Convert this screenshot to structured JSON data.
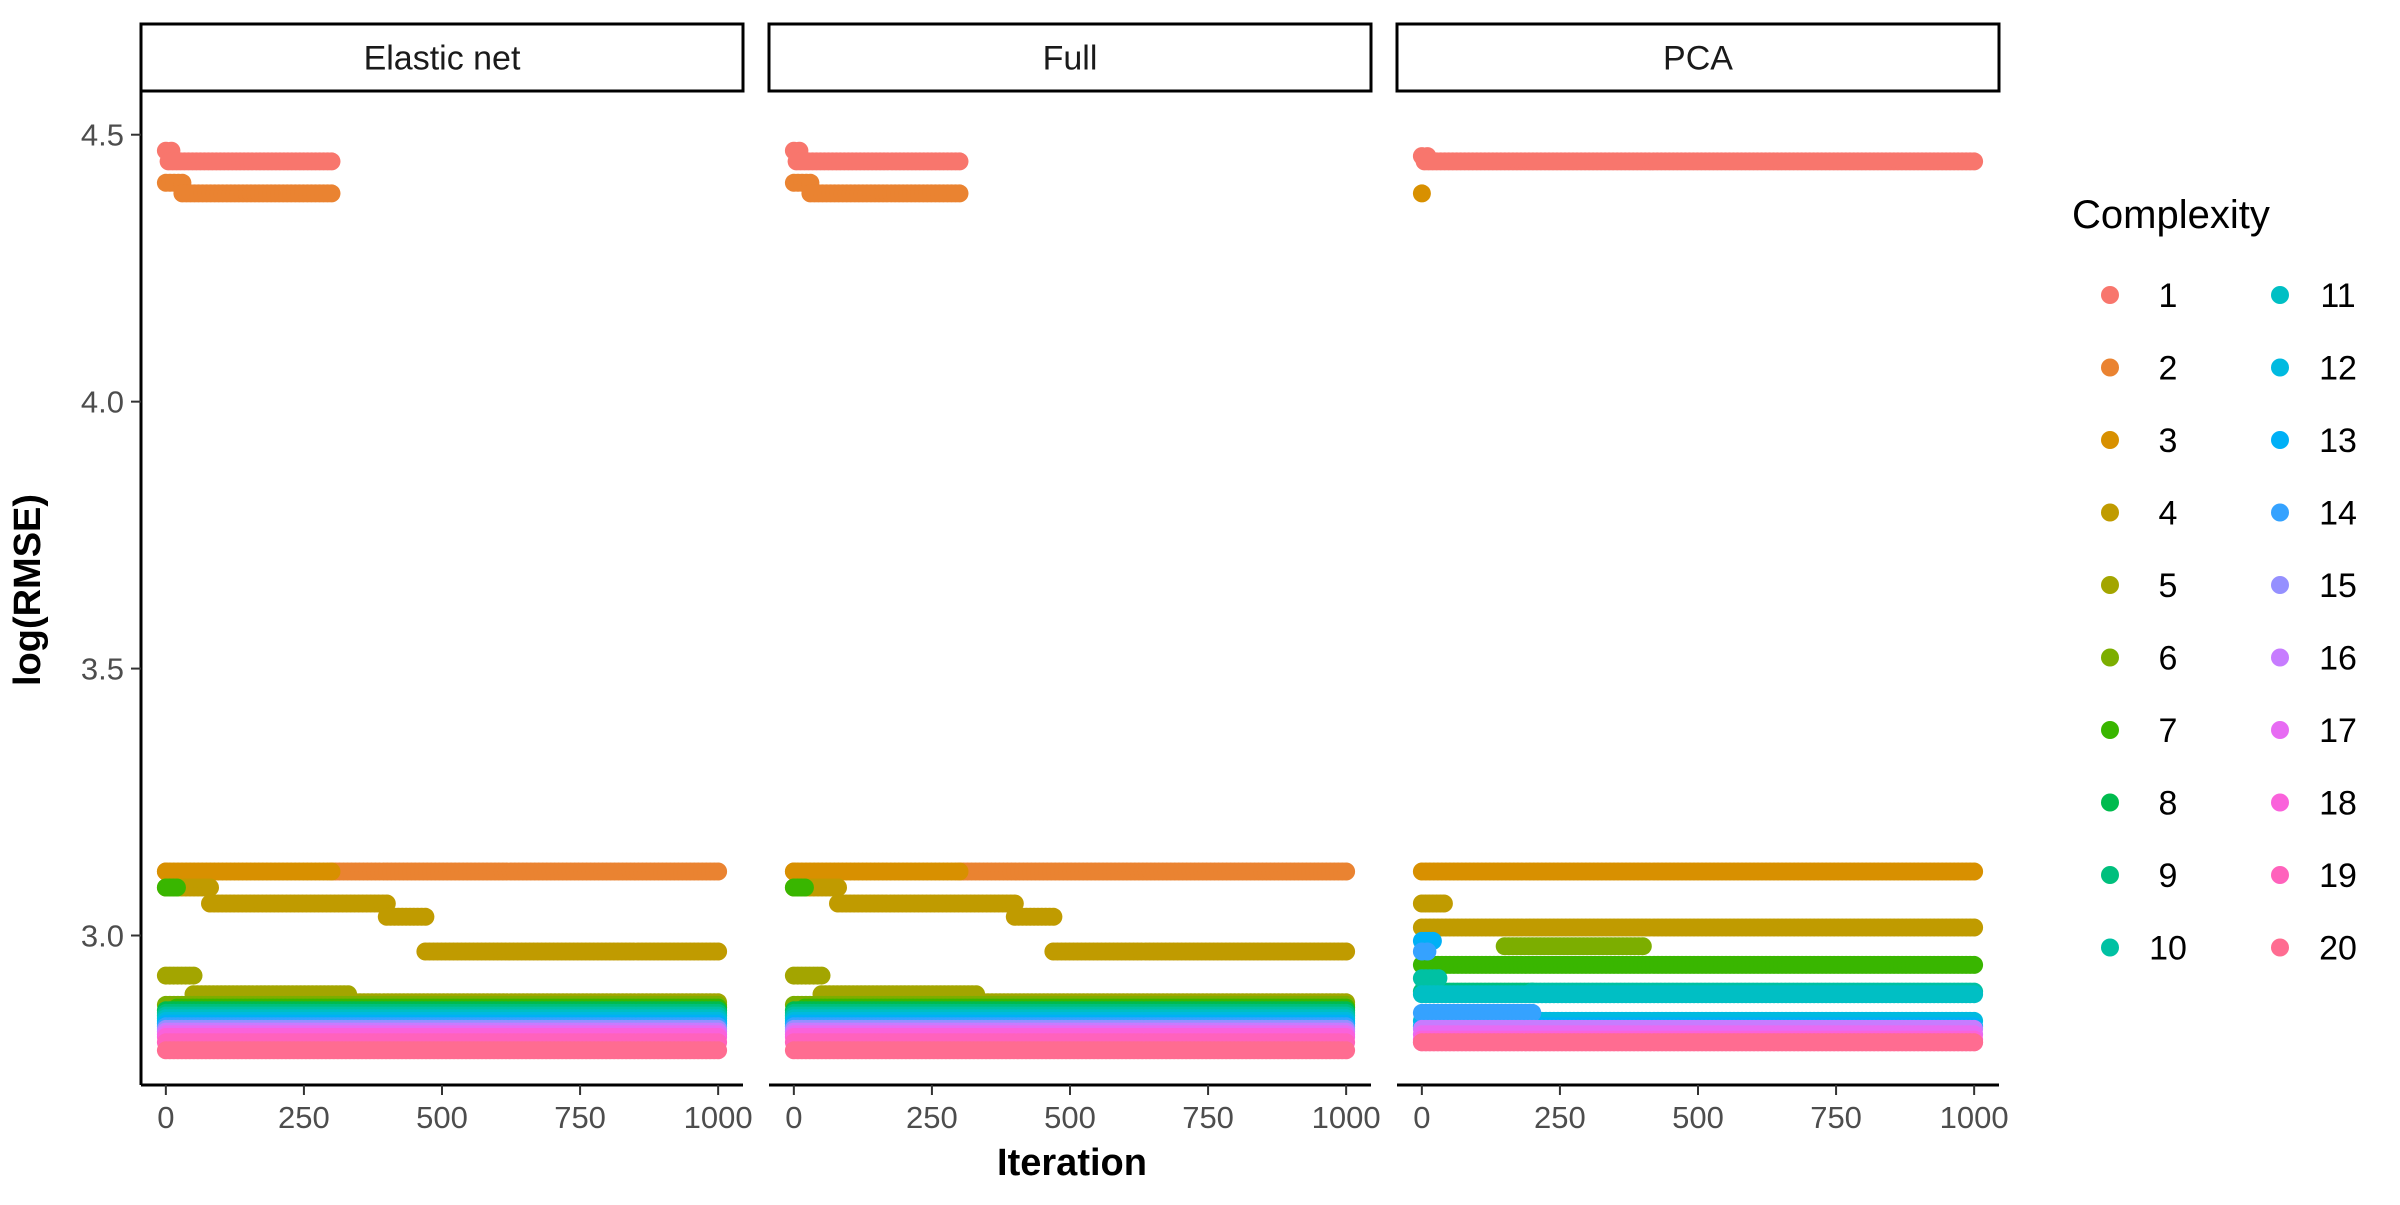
{
  "chart_data": {
    "type": "scatter",
    "facets": [
      "Elastic net",
      "Full",
      "PCA"
    ],
    "xlabel": "Iteration",
    "ylabel": "log(RMSE)",
    "xlim": [
      -45,
      1045
    ],
    "ylim": [
      2.72,
      4.58
    ],
    "x_ticks": [
      0,
      250,
      500,
      750,
      1000
    ],
    "y_ticks": [
      3.0,
      3.5,
      4.0,
      4.5
    ],
    "grid": false,
    "legend": {
      "title": "Complexity",
      "position": "right",
      "columns": 2,
      "entries": [
        "1",
        "2",
        "3",
        "4",
        "5",
        "6",
        "7",
        "8",
        "9",
        "10",
        "11",
        "12",
        "13",
        "14",
        "15",
        "16",
        "17",
        "18",
        "19",
        "20"
      ]
    },
    "colors": [
      "#F8766D",
      "#EA8331",
      "#D89000",
      "#C09B00",
      "#A3A500",
      "#7CAE00",
      "#39B600",
      "#00BB4E",
      "#00BF7D",
      "#00C1A3",
      "#00BFC4",
      "#00BAE0",
      "#00B0F6",
      "#35A2FF",
      "#9590FF",
      "#C77CFF",
      "#E76BF3",
      "#FA62DB",
      "#FF62BC",
      "#FF6C91"
    ],
    "panels": [
      {
        "facet": "Elastic net",
        "series": [
          {
            "name": "1",
            "segments": [
              {
                "x": [
                  0,
                  10
                ],
                "y": 4.47
              },
              {
                "x": [
                  5,
                  300
                ],
                "y": 4.45
              }
            ]
          },
          {
            "name": "2",
            "segments": [
              {
                "x": [
                  0,
                  30
                ],
                "y": 4.41
              },
              {
                "x": [
                  30,
                  300
                ],
                "y": 4.39
              },
              {
                "x": 0,
                "y": 3.12
              },
              {
                "x": [
                  300,
                  1000
                ],
                "y": 3.12
              }
            ]
          },
          {
            "name": "3",
            "segments": [
              {
                "x": [
                  0,
                  300
                ],
                "y": 3.12
              }
            ]
          },
          {
            "name": "4",
            "segments": [
              {
                "x": [
                  0,
                  80
                ],
                "y": 3.09
              },
              {
                "x": [
                  80,
                  400
                ],
                "y": 3.06
              },
              {
                "x": [
                  400,
                  470
                ],
                "y": 3.035
              },
              {
                "x": [
                  470,
                  1000
                ],
                "y": 2.97
              }
            ]
          },
          {
            "name": "5",
            "segments": [
              {
                "x": [
                  0,
                  50
                ],
                "y": 2.925
              },
              {
                "x": [
                  50,
                  330
                ],
                "y": 2.89
              },
              {
                "x": [
                  330,
                  1000
                ],
                "y": 2.875
              }
            ]
          },
          {
            "name": "6",
            "segments": [
              {
                "x": [
                  0,
                  1000
                ],
                "y": 2.87
              }
            ]
          },
          {
            "name": "7",
            "segments": [
              {
                "x": [
                  0,
                  20
                ],
                "y": 3.09
              },
              {
                "x": [
                  20,
                  1000
                ],
                "y": 2.865
              }
            ]
          },
          {
            "name": "8",
            "segments": [
              {
                "x": [
                  0,
                  1000
                ],
                "y": 2.86
              }
            ]
          },
          {
            "name": "9",
            "segments": [
              {
                "x": [
                  0,
                  1000
                ],
                "y": 2.855
              }
            ]
          },
          {
            "name": "10",
            "segments": [
              {
                "x": [
                  0,
                  1000
                ],
                "y": 2.85
              }
            ]
          },
          {
            "name": "11",
            "segments": [
              {
                "x": [
                  0,
                  1000
                ],
                "y": 2.845
              }
            ]
          },
          {
            "name": "12",
            "segments": [
              {
                "x": [
                  0,
                  1000
                ],
                "y": 2.84
              }
            ]
          },
          {
            "name": "13",
            "segments": [
              {
                "x": [
                  0,
                  1000
                ],
                "y": 2.835
              }
            ]
          },
          {
            "name": "14",
            "segments": [
              {
                "x": [
                  0,
                  1000
                ],
                "y": 2.83
              }
            ]
          },
          {
            "name": "15",
            "segments": [
              {
                "x": [
                  0,
                  1000
                ],
                "y": 2.825
              }
            ]
          },
          {
            "name": "16",
            "segments": [
              {
                "x": [
                  0,
                  1000
                ],
                "y": 2.82
              }
            ]
          },
          {
            "name": "17",
            "segments": [
              {
                "x": [
                  0,
                  1000
                ],
                "y": 2.815
              }
            ]
          },
          {
            "name": "18",
            "segments": [
              {
                "x": [
                  0,
                  1000
                ],
                "y": 2.81
              }
            ]
          },
          {
            "name": "19",
            "segments": [
              {
                "x": [
                  0,
                  1000
                ],
                "y": 2.8
              }
            ]
          },
          {
            "name": "20",
            "segments": [
              {
                "x": [
                  0,
                  1000
                ],
                "y": 2.785
              }
            ]
          }
        ]
      },
      {
        "facet": "Full",
        "series": [
          {
            "name": "1",
            "segments": [
              {
                "x": [
                  0,
                  10
                ],
                "y": 4.47
              },
              {
                "x": [
                  5,
                  300
                ],
                "y": 4.45
              }
            ]
          },
          {
            "name": "2",
            "segments": [
              {
                "x": [
                  0,
                  30
                ],
                "y": 4.41
              },
              {
                "x": [
                  30,
                  300
                ],
                "y": 4.39
              },
              {
                "x": 0,
                "y": 3.12
              },
              {
                "x": [
                  300,
                  1000
                ],
                "y": 3.12
              }
            ]
          },
          {
            "name": "3",
            "segments": [
              {
                "x": [
                  0,
                  300
                ],
                "y": 3.12
              }
            ]
          },
          {
            "name": "4",
            "segments": [
              {
                "x": [
                  0,
                  80
                ],
                "y": 3.09
              },
              {
                "x": [
                  80,
                  400
                ],
                "y": 3.06
              },
              {
                "x": [
                  400,
                  470
                ],
                "y": 3.035
              },
              {
                "x": [
                  470,
                  1000
                ],
                "y": 2.97
              }
            ]
          },
          {
            "name": "5",
            "segments": [
              {
                "x": [
                  0,
                  50
                ],
                "y": 2.925
              },
              {
                "x": [
                  50,
                  330
                ],
                "y": 2.89
              },
              {
                "x": [
                  330,
                  1000
                ],
                "y": 2.875
              }
            ]
          },
          {
            "name": "6",
            "segments": [
              {
                "x": [
                  0,
                  1000
                ],
                "y": 2.87
              }
            ]
          },
          {
            "name": "7",
            "segments": [
              {
                "x": [
                  0,
                  20
                ],
                "y": 3.09
              },
              {
                "x": [
                  20,
                  1000
                ],
                "y": 2.865
              }
            ]
          },
          {
            "name": "8",
            "segments": [
              {
                "x": [
                  0,
                  1000
                ],
                "y": 2.86
              }
            ]
          },
          {
            "name": "9",
            "segments": [
              {
                "x": [
                  0,
                  1000
                ],
                "y": 2.855
              }
            ]
          },
          {
            "name": "10",
            "segments": [
              {
                "x": [
                  0,
                  1000
                ],
                "y": 2.85
              }
            ]
          },
          {
            "name": "11",
            "segments": [
              {
                "x": [
                  0,
                  1000
                ],
                "y": 2.845
              }
            ]
          },
          {
            "name": "12",
            "segments": [
              {
                "x": [
                  0,
                  1000
                ],
                "y": 2.84
              }
            ]
          },
          {
            "name": "13",
            "segments": [
              {
                "x": [
                  0,
                  1000
                ],
                "y": 2.835
              }
            ]
          },
          {
            "name": "14",
            "segments": [
              {
                "x": [
                  0,
                  1000
                ],
                "y": 2.83
              }
            ]
          },
          {
            "name": "15",
            "segments": [
              {
                "x": [
                  0,
                  1000
                ],
                "y": 2.825
              }
            ]
          },
          {
            "name": "16",
            "segments": [
              {
                "x": [
                  0,
                  1000
                ],
                "y": 2.82
              }
            ]
          },
          {
            "name": "17",
            "segments": [
              {
                "x": [
                  0,
                  1000
                ],
                "y": 2.815
              }
            ]
          },
          {
            "name": "18",
            "segments": [
              {
                "x": [
                  0,
                  1000
                ],
                "y": 2.81
              }
            ]
          },
          {
            "name": "19",
            "segments": [
              {
                "x": [
                  0,
                  1000
                ],
                "y": 2.8
              }
            ]
          },
          {
            "name": "20",
            "segments": [
              {
                "x": [
                  0,
                  1000
                ],
                "y": 2.785
              }
            ]
          }
        ]
      },
      {
        "facet": "PCA",
        "series": [
          {
            "name": "1",
            "segments": [
              {
                "x": [
                  0,
                  10
                ],
                "y": 4.46
              },
              {
                "x": [
                  5,
                  1000
                ],
                "y": 4.45
              }
            ]
          },
          {
            "name": "3",
            "segments": [
              {
                "x": 0,
                "y": 4.39
              },
              {
                "x": [
                  0,
                  1000
                ],
                "y": 3.12
              }
            ]
          },
          {
            "name": "4",
            "segments": [
              {
                "x": [
                  0,
                  40
                ],
                "y": 3.06
              },
              {
                "x": [
                  0,
                  1000
                ],
                "y": 3.015
              }
            ]
          },
          {
            "name": "6",
            "segments": [
              {
                "x": [
                  150,
                  400
                ],
                "y": 2.98
              }
            ]
          },
          {
            "name": "7",
            "segments": [
              {
                "x": [
                  0,
                  1000
                ],
                "y": 2.945
              }
            ]
          },
          {
            "name": "9",
            "segments": [
              {
                "x": [
                  0,
                  200
                ],
                "y": 2.895
              }
            ]
          },
          {
            "name": "10",
            "segments": [
              {
                "x": [
                  0,
                  30
                ],
                "y": 2.92
              },
              {
                "x": [
                  200,
                  1000
                ],
                "y": 2.895
              }
            ]
          },
          {
            "name": "11",
            "segments": [
              {
                "x": [
                  0,
                  1000
                ],
                "y": 2.89
              }
            ]
          },
          {
            "name": "12",
            "segments": [
              {
                "x": [
                  0,
                  1000
                ],
                "y": 2.84
              }
            ]
          },
          {
            "name": "13",
            "segments": [
              {
                "x": [
                  0,
                  20
                ],
                "y": 2.99
              },
              {
                "x": [
                  0,
                  1000
                ],
                "y": 2.83
              }
            ]
          },
          {
            "name": "14",
            "segments": [
              {
                "x": [
                  0,
                  10
                ],
                "y": 2.97
              },
              {
                "x": [
                  0,
                  200
                ],
                "y": 2.855
              }
            ]
          },
          {
            "name": "16",
            "segments": [
              {
                "x": [
                  0,
                  1000
                ],
                "y": 2.825
              }
            ]
          },
          {
            "name": "17",
            "segments": [
              {
                "x": [
                  0,
                  1000
                ],
                "y": 2.815
              }
            ]
          },
          {
            "name": "18",
            "segments": [
              {
                "x": [
                  0,
                  1000
                ],
                "y": 2.805
              }
            ]
          },
          {
            "name": "19",
            "segments": [
              {
                "x": [
                  0,
                  1000
                ],
                "y": 2.8
              }
            ]
          },
          {
            "name": "20",
            "segments": [
              {
                "x": [
                  0,
                  1000
                ],
                "y": 2.8
              }
            ]
          }
        ]
      }
    ]
  }
}
